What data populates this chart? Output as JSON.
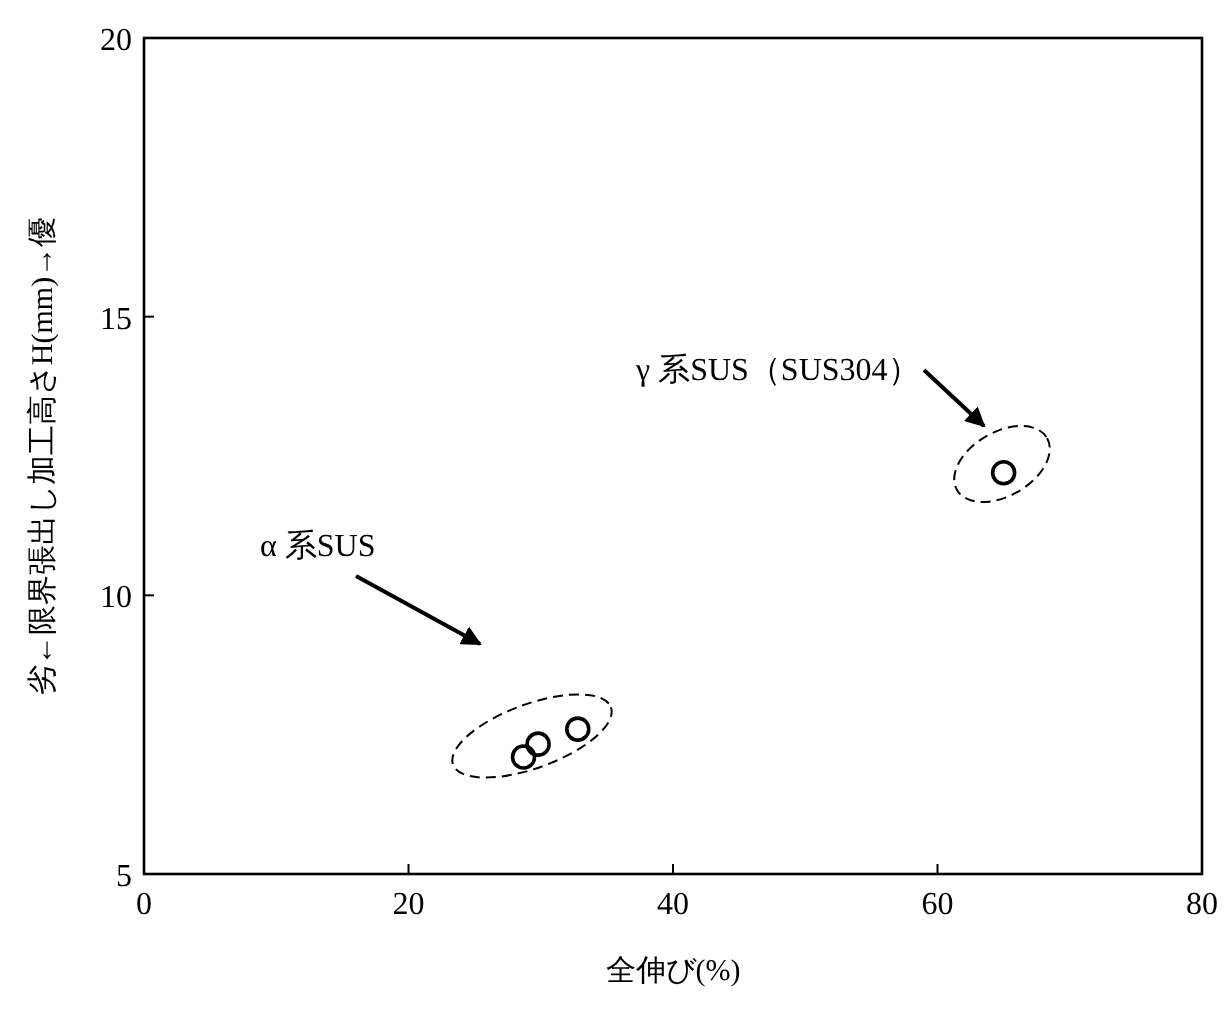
{
  "chart_data": {
    "type": "scatter",
    "xlabel": "全伸び(%)",
    "ylabel": "劣←限界張出し加工高さH(mm)→優",
    "x": [
      28.7,
      29.8,
      32.8,
      65.0
    ],
    "values": [
      7.1,
      7.33,
      7.6,
      12.2
    ],
    "color": "#000000",
    "marker": "circle",
    "xlim": [
      0,
      80
    ],
    "xticks": [
      0,
      20,
      40,
      60,
      80
    ],
    "ylim": [
      5,
      20
    ],
    "yticks": [
      5,
      10,
      15,
      20
    ],
    "grid": false,
    "annotations": [
      "α 系SUS",
      "γ 系SUS（SUS304）"
    ]
  }
}
